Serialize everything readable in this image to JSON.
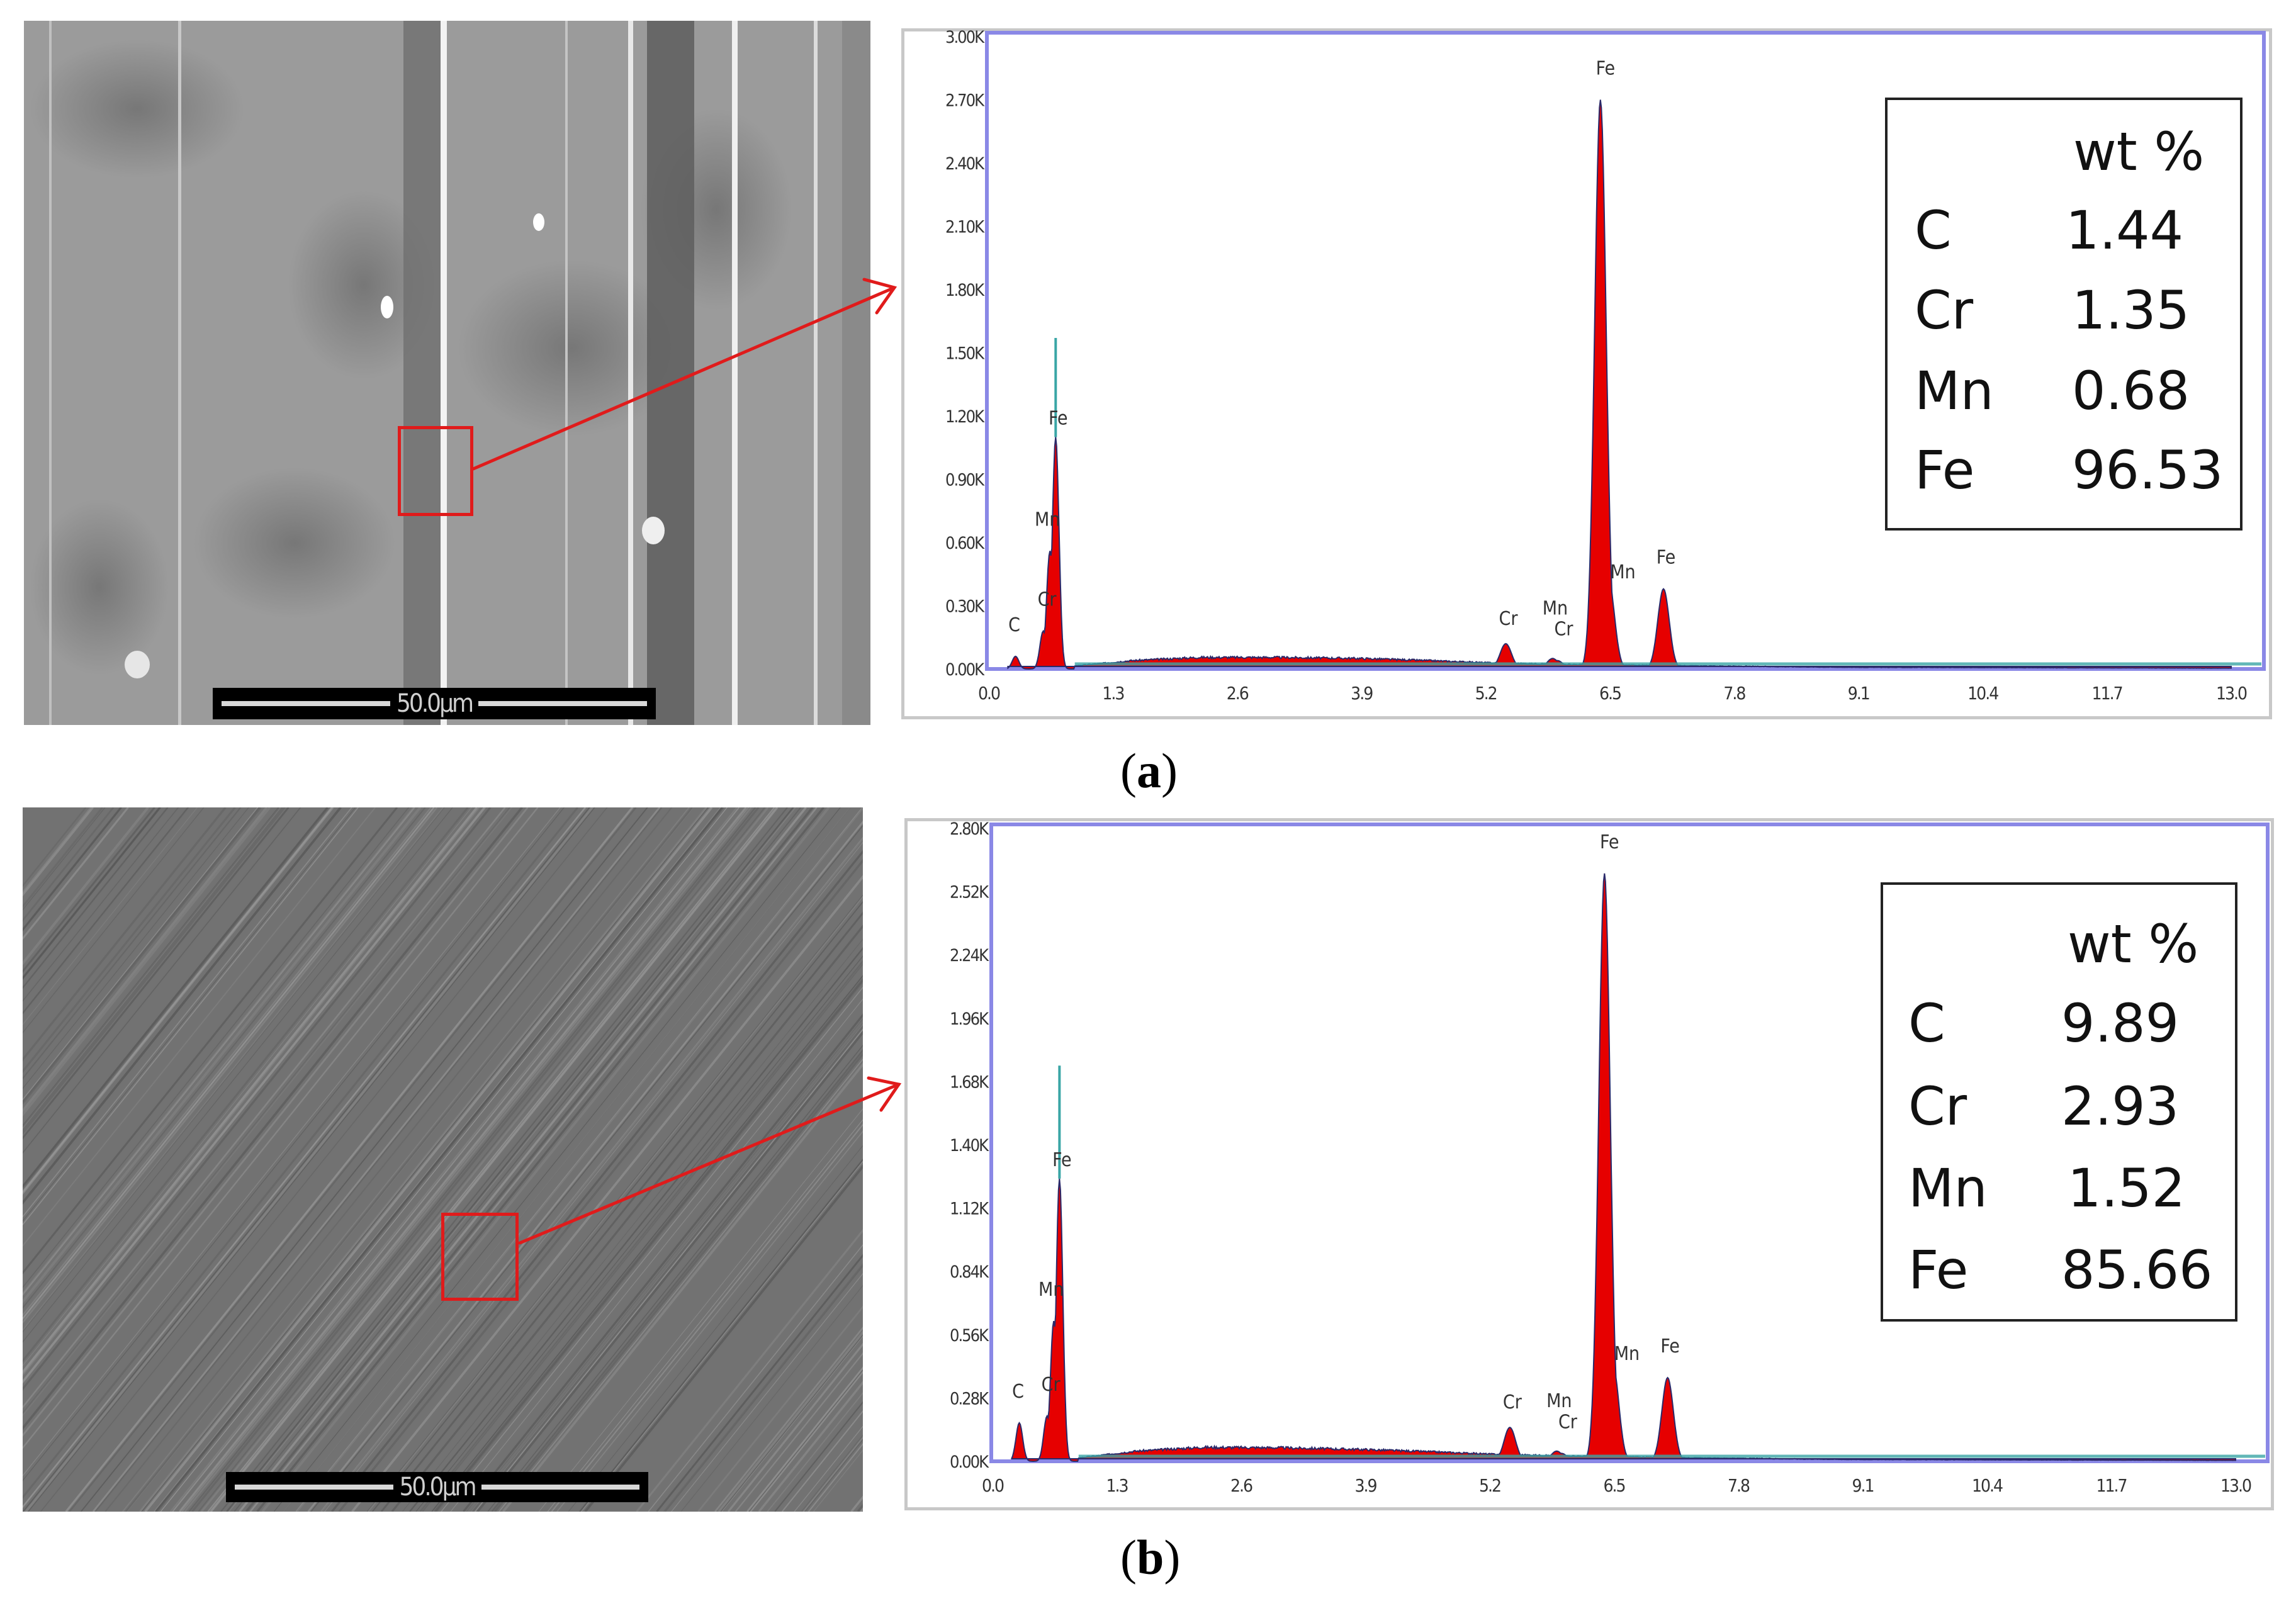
{
  "figure": {
    "panels": [
      {
        "id": "a",
        "caption_open": "(",
        "caption_letter": "a",
        "caption_close": ")",
        "sem": {
          "scale_bar_label": "50.0µm",
          "texture": "vertical-grooves",
          "red_box_color": "#e01b1b"
        },
        "eds": {
          "table": {
            "header": "wt %",
            "rows": [
              {
                "element": "C",
                "value": "1.44"
              },
              {
                "element": "Cr",
                "value": "1.35"
              },
              {
                "element": "Mn",
                "value": "0.68"
              },
              {
                "element": "Fe",
                "value": "96.53"
              }
            ]
          }
        }
      },
      {
        "id": "b",
        "caption_open": "(",
        "caption_letter": "b",
        "caption_close": ")",
        "sem": {
          "scale_bar_label": "50.0µm",
          "texture": "diagonal-scratches",
          "red_box_color": "#e01b1b"
        },
        "eds": {
          "table": {
            "header": "wt %",
            "rows": [
              {
                "element": "C",
                "value": "9.89"
              },
              {
                "element": "Cr",
                "value": "2.93"
              },
              {
                "element": "Mn",
                "value": "1.52"
              },
              {
                "element": "Fe",
                "value": "85.66"
              }
            ]
          }
        }
      }
    ],
    "colors": {
      "spectrum_fill": "#e60000",
      "spectrum_outline": "#2a2a6a",
      "frame_blue": "#8a88e6",
      "trace_teal": "#3aa6a6",
      "annotation_red": "#e01b1b"
    }
  },
  "chart_data": [
    {
      "type": "area",
      "title": "",
      "panel": "a",
      "xlabel": "",
      "ylabel": "",
      "x_ticks": [
        "0.0",
        "1.3",
        "2.6",
        "3.9",
        "5.2",
        "6.5",
        "7.8",
        "9.1",
        "10.4",
        "11.7",
        "13.0"
      ],
      "y_ticks": [
        "0.00K",
        "0.30K",
        "0.60K",
        "0.90K",
        "1.20K",
        "1.50K",
        "1.80K",
        "2.10K",
        "2.40K",
        "2.70K",
        "3.00K"
      ],
      "xlim": [
        0,
        13.0
      ],
      "ylim": [
        0,
        3000
      ],
      "peaks": [
        {
          "label": "C",
          "energy_keV": 0.28,
          "counts": 60
        },
        {
          "label": "Cr",
          "energy_keV": 0.57,
          "counts": 180
        },
        {
          "label": "Mn",
          "energy_keV": 0.64,
          "counts": 560
        },
        {
          "label": "Fe",
          "energy_keV": 0.7,
          "counts": 1100,
          "overlay_tip_counts": 1570
        },
        {
          "label": "Cr",
          "energy_keV": 5.41,
          "counts": 120
        },
        {
          "label": "Mn",
          "energy_keV": 5.9,
          "counts": 50
        },
        {
          "label": "Cr",
          "energy_keV": 5.95,
          "counts": 40
        },
        {
          "label": "Fe",
          "energy_keV": 6.4,
          "counts": 2700
        },
        {
          "label": "Mn",
          "energy_keV": 6.49,
          "counts": 400
        },
        {
          "label": "Fe",
          "energy_keV": 7.06,
          "counts": 380
        }
      ],
      "background_continuum": {
        "x": [
          0.9,
          1.5,
          2.2,
          3.0,
          3.9,
          4.6,
          5.2,
          6.0,
          7.5,
          9.0,
          13.0
        ],
        "y": [
          15,
          40,
          55,
          55,
          50,
          40,
          30,
          22,
          14,
          8,
          4
        ]
      },
      "inset_table": {
        "header": "wt %",
        "rows": [
          [
            "C",
            "1.44"
          ],
          [
            "Cr",
            "1.35"
          ],
          [
            "Mn",
            "0.68"
          ],
          [
            "Fe",
            "96.53"
          ]
        ]
      },
      "grid": false,
      "legend": "none"
    },
    {
      "type": "area",
      "title": "",
      "panel": "b",
      "xlabel": "",
      "ylabel": "",
      "x_ticks": [
        "0.0",
        "1.3",
        "2.6",
        "3.9",
        "5.2",
        "6.5",
        "7.8",
        "9.1",
        "10.4",
        "11.7",
        "13.0"
      ],
      "y_ticks": [
        "0.00K",
        "0.28K",
        "0.56K",
        "0.84K",
        "1.12K",
        "1.40K",
        "1.68K",
        "1.96K",
        "2.24K",
        "2.52K",
        "2.80K"
      ],
      "xlim": [
        0,
        13.0
      ],
      "ylim": [
        0,
        2800
      ],
      "peaks": [
        {
          "label": "C",
          "energy_keV": 0.28,
          "counts": 170
        },
        {
          "label": "Cr",
          "energy_keV": 0.57,
          "counts": 200
        },
        {
          "label": "Mn",
          "energy_keV": 0.64,
          "counts": 620
        },
        {
          "label": "Fe",
          "energy_keV": 0.7,
          "counts": 1250,
          "overlay_tip_counts": 1750
        },
        {
          "label": "Cr",
          "energy_keV": 5.41,
          "counts": 150
        },
        {
          "label": "Mn",
          "energy_keV": 5.9,
          "counts": 45
        },
        {
          "label": "Cr",
          "energy_keV": 5.95,
          "counts": 35
        },
        {
          "label": "Fe",
          "energy_keV": 6.4,
          "counts": 2600
        },
        {
          "label": "Mn",
          "energy_keV": 6.49,
          "counts": 420
        },
        {
          "label": "Fe",
          "energy_keV": 7.06,
          "counts": 370
        }
      ],
      "background_continuum": {
        "x": [
          0.9,
          1.5,
          2.2,
          3.0,
          3.9,
          4.6,
          5.2,
          6.0,
          7.5,
          9.0,
          13.0
        ],
        "y": [
          15,
          45,
          62,
          60,
          52,
          42,
          32,
          24,
          14,
          8,
          4
        ]
      },
      "inset_table": {
        "header": "wt %",
        "rows": [
          [
            "C",
            "9.89"
          ],
          [
            "Cr",
            "2.93"
          ],
          [
            "Mn",
            "1.52"
          ],
          [
            "Fe",
            "85.66"
          ]
        ]
      },
      "grid": false,
      "legend": "none"
    }
  ]
}
